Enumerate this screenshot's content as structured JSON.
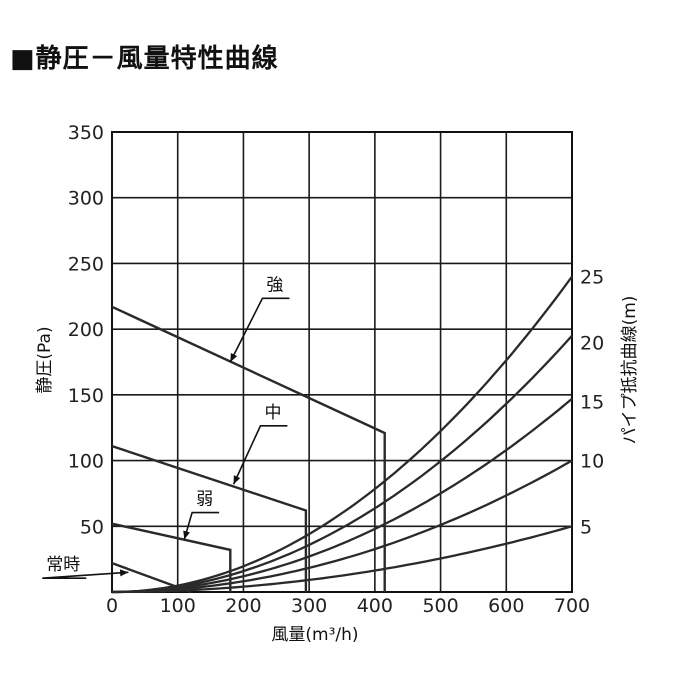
{
  "title": "■静圧－風量特性曲線",
  "chart_data": {
    "type": "line",
    "title": "■静圧－風量特性曲線",
    "xlabel": "風量(m³/h)",
    "ylabel": "静圧(Pa)",
    "ylabel_right": "パイプ抵抗曲線(m)",
    "xlim": [
      0,
      700
    ],
    "ylim": [
      0,
      350
    ],
    "x_ticks": [
      "0",
      "100",
      "200",
      "300",
      "400",
      "500",
      "600",
      "700"
    ],
    "x_tick_values": [
      0,
      100,
      200,
      300,
      400,
      500,
      600,
      700
    ],
    "y_ticks": [
      "350",
      "300",
      "250",
      "200",
      "150",
      "100",
      "50"
    ],
    "y_tick_values": [
      350,
      300,
      250,
      200,
      150,
      100,
      50
    ],
    "y2_ticks": [
      "25",
      "20",
      "15",
      "10",
      "5"
    ],
    "y2_tick_values": [
      240,
      190,
      145,
      100,
      50
    ],
    "grid": true,
    "series": [
      {
        "name": "強",
        "points": [
          [
            0,
            217
          ],
          [
            415,
            121
          ],
          [
            415,
            0
          ]
        ],
        "label_x": 235,
        "label_y": 225,
        "arrow_to": [
          180,
          175
        ]
      },
      {
        "name": "中",
        "points": [
          [
            0,
            111
          ],
          [
            295,
            62
          ],
          [
            295,
            0
          ]
        ],
        "label_x": 232,
        "label_y": 128,
        "arrow_to": [
          185,
          82
        ]
      },
      {
        "name": "弱",
        "points": [
          [
            0,
            52
          ],
          [
            180,
            32
          ],
          [
            180,
            0
          ]
        ],
        "label_x": 128,
        "label_y": 62,
        "arrow_to": [
          110,
          40
        ]
      },
      {
        "name": "常時",
        "points": [
          [
            0,
            22
          ],
          [
            120,
            0
          ]
        ],
        "label_x": -100,
        "label_y": 12,
        "arrow_to": [
          25,
          15
        ]
      }
    ],
    "pipe_resistance_curves": [
      {
        "length_m": 25,
        "y_at_700": 240
      },
      {
        "length_m": 20,
        "y_at_700": 195
      },
      {
        "length_m": 15,
        "y_at_700": 147
      },
      {
        "length_m": 10,
        "y_at_700": 100
      },
      {
        "length_m": 5,
        "y_at_700": 50
      }
    ]
  }
}
